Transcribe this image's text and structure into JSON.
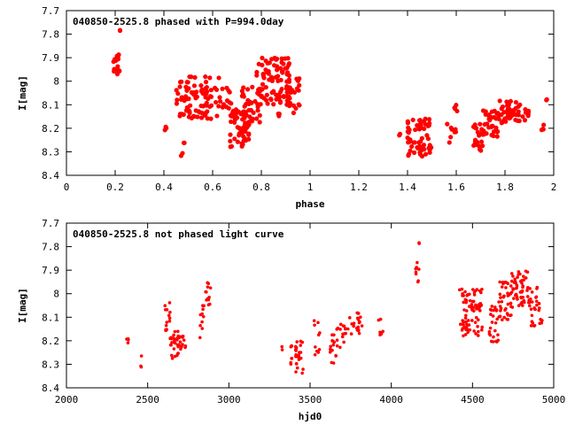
{
  "chart_data": [
    {
      "type": "scatter",
      "title": "040850-2525.8 phased with P=994.0day",
      "xlabel": "phase",
      "ylabel": "I[mag]",
      "xlim": [
        0,
        2
      ],
      "ylim": [
        8.4,
        7.7
      ],
      "y_inverted": true,
      "x_ticks": [
        0,
        0.2,
        0.4,
        0.6,
        0.8,
        1,
        1.2,
        1.4,
        1.6,
        1.8,
        2
      ],
      "x_tick_labels": [
        "0",
        "0.2",
        "0.4",
        "0.6",
        "0.8",
        "1",
        "1.2",
        "1.4",
        "1.6",
        "1.8",
        "2"
      ],
      "y_ticks": [
        7.7,
        7.8,
        7.9,
        8,
        8.1,
        8.2,
        8.3,
        8.4
      ],
      "y_tick_labels": [
        "7.7",
        "7.8",
        "7.9",
        "8",
        "8.1",
        "8.2",
        "8.3",
        "8.4"
      ],
      "marker_color": "#ff0000",
      "grid": false,
      "clusters": [
        {
          "x": [
            0.19,
            0.22
          ],
          "y": [
            7.87,
            7.97
          ],
          "n": 16
        },
        {
          "x": [
            0.22,
            0.22
          ],
          "y": [
            7.78,
            7.79
          ],
          "n": 2
        },
        {
          "x": [
            0.4,
            0.41
          ],
          "y": [
            8.19,
            8.21
          ],
          "n": 3
        },
        {
          "x": [
            0.46,
            0.48
          ],
          "y": [
            8.3,
            8.32
          ],
          "n": 2
        },
        {
          "x": [
            0.47,
            0.49
          ],
          "y": [
            8.26,
            8.28
          ],
          "n": 2
        },
        {
          "x": [
            0.45,
            0.63
          ],
          "y": [
            7.98,
            8.16
          ],
          "n": 90
        },
        {
          "x": [
            0.63,
            0.68
          ],
          "y": [
            8.02,
            8.12
          ],
          "n": 14
        },
        {
          "x": [
            0.67,
            0.75
          ],
          "y": [
            8.12,
            8.28
          ],
          "n": 55
        },
        {
          "x": [
            0.72,
            0.8
          ],
          "y": [
            8.02,
            8.18
          ],
          "n": 40
        },
        {
          "x": [
            0.78,
            0.92
          ],
          "y": [
            7.9,
            8.1
          ],
          "n": 90
        },
        {
          "x": [
            0.9,
            0.96
          ],
          "y": [
            7.98,
            8.14
          ],
          "n": 22
        },
        {
          "x": [
            0.85,
            0.88
          ],
          "y": [
            8.13,
            8.16
          ],
          "n": 4
        },
        {
          "x": [
            1.36,
            1.37
          ],
          "y": [
            8.22,
            8.24
          ],
          "n": 2
        },
        {
          "x": [
            1.4,
            1.5
          ],
          "y": [
            8.16,
            8.33
          ],
          "n": 55
        },
        {
          "x": [
            1.49,
            1.5
          ],
          "y": [
            8.26,
            8.3
          ],
          "n": 3
        },
        {
          "x": [
            1.56,
            1.6
          ],
          "y": [
            8.18,
            8.27
          ],
          "n": 8
        },
        {
          "x": [
            1.59,
            1.61
          ],
          "y": [
            8.1,
            8.13
          ],
          "n": 4
        },
        {
          "x": [
            1.67,
            1.71
          ],
          "y": [
            8.18,
            8.3
          ],
          "n": 25
        },
        {
          "x": [
            1.71,
            1.77
          ],
          "y": [
            8.12,
            8.24
          ],
          "n": 30
        },
        {
          "x": [
            1.77,
            1.85
          ],
          "y": [
            8.08,
            8.18
          ],
          "n": 40
        },
        {
          "x": [
            1.85,
            1.9
          ],
          "y": [
            8.1,
            8.18
          ],
          "n": 14
        },
        {
          "x": [
            1.95,
            1.97
          ],
          "y": [
            8.17,
            8.21
          ],
          "n": 4
        },
        {
          "x": [
            1.97,
            1.99
          ],
          "y": [
            8.07,
            8.09
          ],
          "n": 2
        }
      ]
    },
    {
      "type": "scatter",
      "title": "040850-2525.8 not phased light curve",
      "xlabel": "hjd0",
      "ylabel": "I[mag]",
      "xlim": [
        2000,
        5000
      ],
      "ylim": [
        8.4,
        7.7
      ],
      "y_inverted": true,
      "x_ticks": [
        2000,
        2500,
        3000,
        3500,
        4000,
        4500,
        5000
      ],
      "x_tick_labels": [
        "2000",
        "2500",
        "3000",
        "3500",
        "4000",
        "4500",
        "5000"
      ],
      "y_ticks": [
        7.7,
        7.8,
        7.9,
        8,
        8.1,
        8.2,
        8.3,
        8.4
      ],
      "y_tick_labels": [
        "7.7",
        "7.8",
        "7.9",
        "8",
        "8.1",
        "8.2",
        "8.3",
        "8.4"
      ],
      "marker_color": "#ff0000",
      "grid": false,
      "clusters": [
        {
          "x": [
            2370,
            2385
          ],
          "y": [
            8.19,
            8.21
          ],
          "n": 4
        },
        {
          "x": [
            2455,
            2465
          ],
          "y": [
            8.26,
            8.32
          ],
          "n": 3
        },
        {
          "x": [
            2600,
            2640
          ],
          "y": [
            8.03,
            8.2
          ],
          "n": 14
        },
        {
          "x": [
            2640,
            2690
          ],
          "y": [
            8.15,
            8.28
          ],
          "n": 25
        },
        {
          "x": [
            2690,
            2735
          ],
          "y": [
            8.18,
            8.24
          ],
          "n": 15
        },
        {
          "x": [
            2820,
            2850
          ],
          "y": [
            8.05,
            8.2
          ],
          "n": 10
        },
        {
          "x": [
            2850,
            2890
          ],
          "y": [
            7.95,
            8.05
          ],
          "n": 12
        },
        {
          "x": [
            3320,
            3330
          ],
          "y": [
            8.22,
            8.24
          ],
          "n": 2
        },
        {
          "x": [
            3380,
            3420
          ],
          "y": [
            8.22,
            8.32
          ],
          "n": 14
        },
        {
          "x": [
            3410,
            3460
          ],
          "y": [
            8.2,
            8.34
          ],
          "n": 18
        },
        {
          "x": [
            3520,
            3560
          ],
          "y": [
            8.11,
            8.26
          ],
          "n": 10
        },
        {
          "x": [
            3620,
            3660
          ],
          "y": [
            8.16,
            8.3
          ],
          "n": 15
        },
        {
          "x": [
            3660,
            3720
          ],
          "y": [
            8.13,
            8.24
          ],
          "n": 16
        },
        {
          "x": [
            3720,
            3820
          ],
          "y": [
            8.08,
            8.18
          ],
          "n": 22
        },
        {
          "x": [
            3920,
            3950
          ],
          "y": [
            8.08,
            8.19
          ],
          "n": 6
        },
        {
          "x": [
            4150,
            4170
          ],
          "y": [
            7.86,
            7.97
          ],
          "n": 8
        },
        {
          "x": [
            4165,
            4175
          ],
          "y": [
            7.78,
            7.79
          ],
          "n": 2
        },
        {
          "x": [
            4420,
            4560
          ],
          "y": [
            7.98,
            8.18
          ],
          "n": 80
        },
        {
          "x": [
            4600,
            4660
          ],
          "y": [
            8.05,
            8.21
          ],
          "n": 25
        },
        {
          "x": [
            4660,
            4740
          ],
          "y": [
            7.95,
            8.12
          ],
          "n": 40
        },
        {
          "x": [
            4740,
            4860
          ],
          "y": [
            7.9,
            8.06
          ],
          "n": 60
        },
        {
          "x": [
            4860,
            4930
          ],
          "y": [
            7.97,
            8.16
          ],
          "n": 25
        }
      ]
    }
  ]
}
